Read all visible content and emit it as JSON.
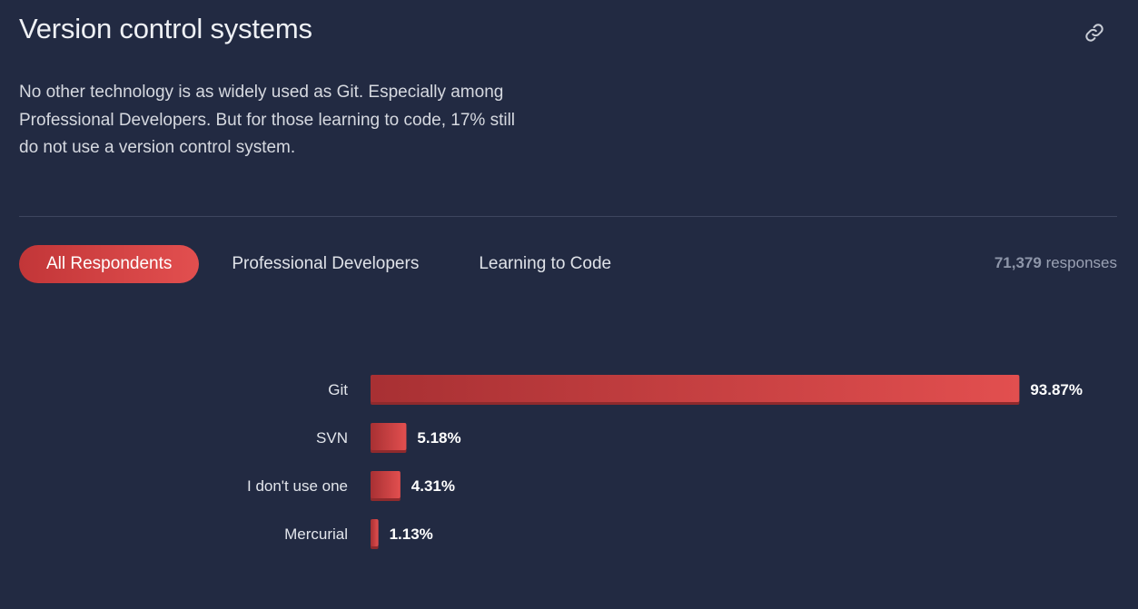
{
  "header": {
    "title": "Version control systems",
    "link_icon": "link-icon",
    "description": "No other technology is as widely used as Git. Especially among Professional Developers. But for those learning to code, 17% still do not use a version control system."
  },
  "tabs": [
    {
      "label": "All Respondents",
      "active": true
    },
    {
      "label": "Professional Developers",
      "active": false
    },
    {
      "label": "Learning to Code",
      "active": false
    }
  ],
  "responses": {
    "count": "71,379",
    "label": "responses"
  },
  "colors": {
    "background": "#222a42",
    "bar_start": "#a83033",
    "bar_end": "#e24f4f",
    "active_tab": "#e04a4b"
  },
  "chart_data": {
    "type": "bar",
    "orientation": "horizontal",
    "categories": [
      "Git",
      "SVN",
      "I don't use one",
      "Mercurial"
    ],
    "values": [
      93.87,
      5.18,
      4.31,
      1.13
    ],
    "value_labels": [
      "93.87%",
      "5.18%",
      "4.31%",
      "1.13%"
    ],
    "unit": "%",
    "xlim": [
      0,
      100
    ],
    "grid": false
  }
}
